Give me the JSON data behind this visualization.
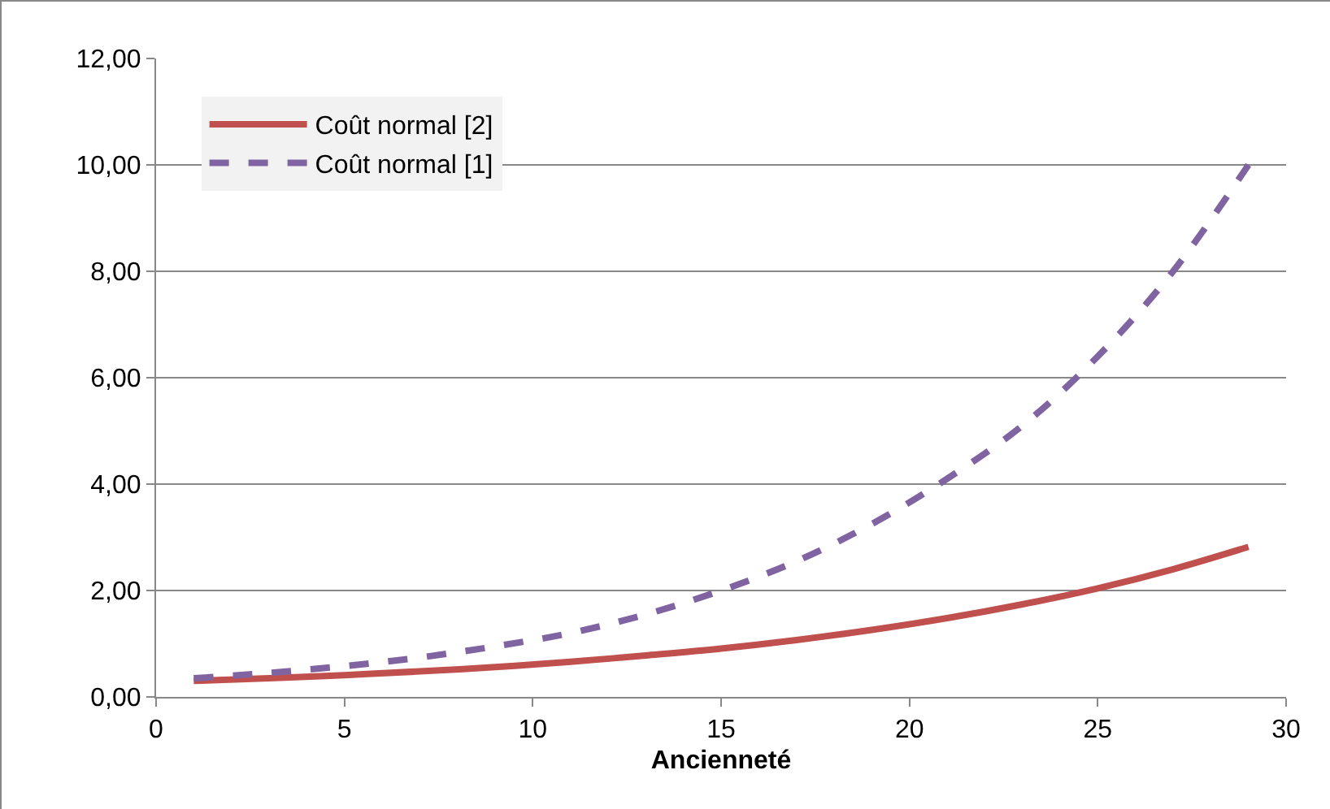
{
  "chart_data": {
    "type": "line",
    "xlabel": "Ancienneté",
    "x": [
      1,
      3,
      5,
      7,
      9,
      11,
      13,
      15,
      17,
      19,
      21,
      23,
      25,
      27,
      29
    ],
    "series": [
      {
        "name": "Coût normal [2]",
        "color": "#c0504d",
        "line_style": "solid",
        "values": [
          0.3,
          0.35,
          0.41,
          0.48,
          0.56,
          0.66,
          0.78,
          0.91,
          1.07,
          1.26,
          1.48,
          1.74,
          2.04,
          2.4,
          2.82
        ]
      },
      {
        "name": "Coût normal [1]",
        "color": "#8064a2",
        "line_style": "dashed",
        "values": [
          0.35,
          0.45,
          0.58,
          0.74,
          0.95,
          1.2,
          1.55,
          2.0,
          2.55,
          3.25,
          4.1,
          5.1,
          6.4,
          8.0,
          10.0
        ]
      }
    ],
    "xlim": [
      0,
      30
    ],
    "xticks": [
      0,
      5,
      10,
      15,
      20,
      25,
      30
    ],
    "ylim": [
      0,
      12
    ],
    "yticks": [
      {
        "value": 0,
        "label": "0,00"
      },
      {
        "value": 2,
        "label": "2,00"
      },
      {
        "value": 4,
        "label": "4,00"
      },
      {
        "value": 6,
        "label": "6,00"
      },
      {
        "value": 8,
        "label": "8,00"
      },
      {
        "value": 10,
        "label": "10,00"
      },
      {
        "value": 12,
        "label": "12,00"
      }
    ],
    "grid": "y",
    "legend": "top left",
    "marker": "none"
  }
}
